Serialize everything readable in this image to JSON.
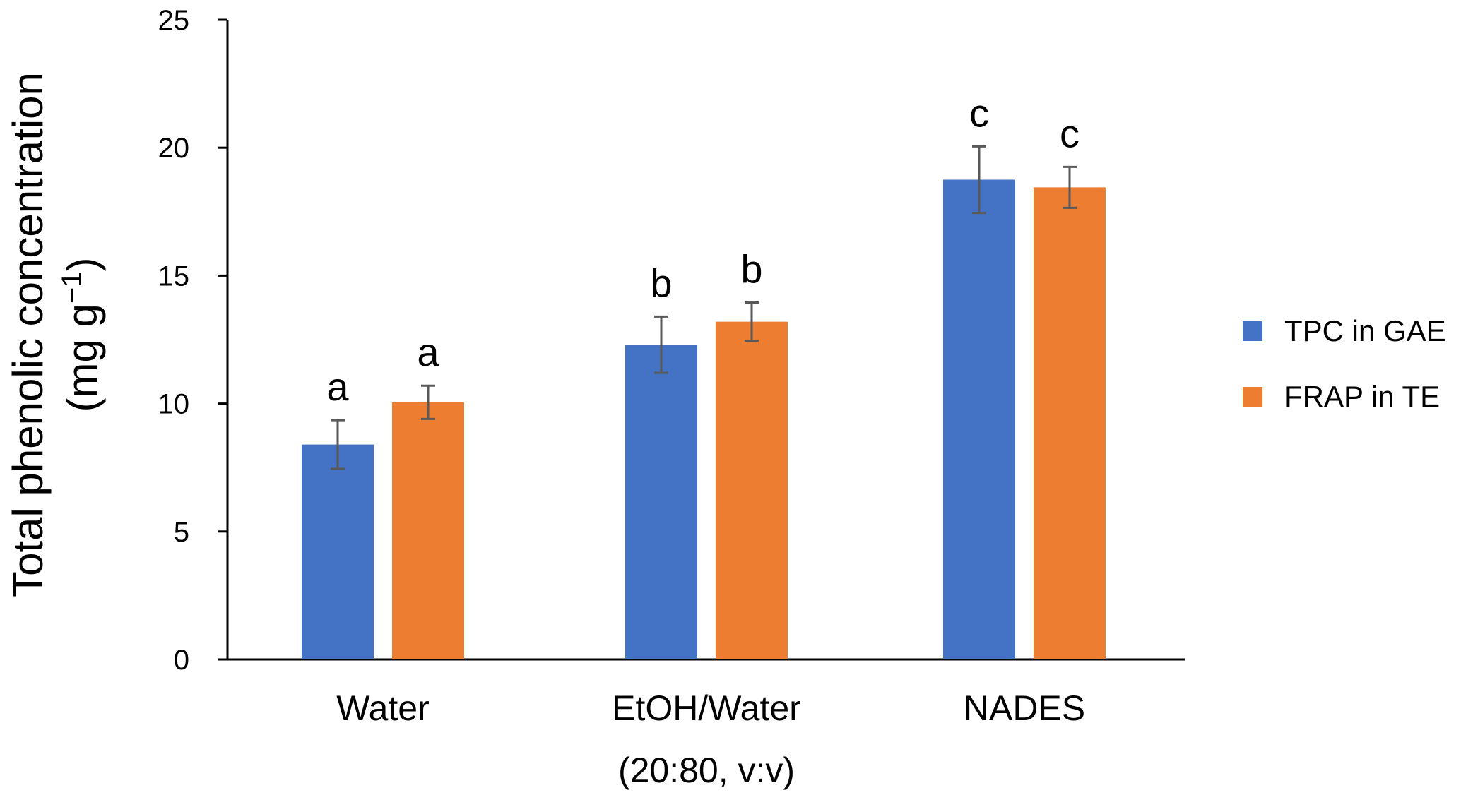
{
  "chart_data": {
    "type": "bar",
    "title": "",
    "ylabel": {
      "line1": "Total phenolic concentration",
      "line2_prefix": "(mg g",
      "line2_superscript": "−1",
      "line2_suffix": ")"
    },
    "xlabel": "",
    "ylim": [
      0,
      25
    ],
    "yticks": [
      0,
      5,
      10,
      15,
      20,
      25
    ],
    "grid": false,
    "legend_position": "right",
    "categories": [
      {
        "line1": "Water",
        "line2": ""
      },
      {
        "line1": "EtOH/Water",
        "line2": "(20:80, v:v)"
      },
      {
        "line1": "NADES",
        "line2": ""
      }
    ],
    "series": [
      {
        "name": "TPC in GAE",
        "color": "#4472C4",
        "values": [
          8.4,
          12.3,
          18.75
        ],
        "errors": [
          0.95,
          1.1,
          1.3
        ],
        "significance": [
          "a",
          "b",
          "c"
        ]
      },
      {
        "name": "FRAP in TE",
        "color": "#ED7D31",
        "values": [
          10.05,
          13.2,
          18.45
        ],
        "errors": [
          0.65,
          0.75,
          0.8
        ],
        "significance": [
          "a",
          "b",
          "c"
        ]
      }
    ]
  }
}
